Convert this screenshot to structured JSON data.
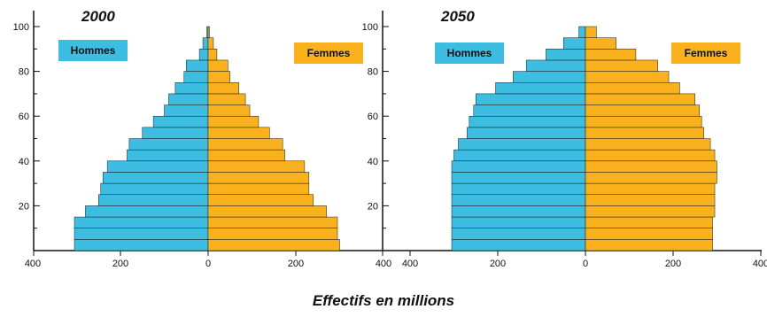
{
  "colors": {
    "hommes": "#3dbde1",
    "femmes": "#f9b21d",
    "bar_edge": "#1a1a1a",
    "axis": "#111111"
  },
  "chart_data": [
    {
      "type": "bar",
      "orientation": "horizontal-pyramid",
      "title": "2000",
      "xlabel": "Effectifs en millions",
      "xlim": [
        -400,
        400
      ],
      "ylim": [
        0,
        105
      ],
      "x_ticks": [
        400,
        200,
        0,
        200,
        400
      ],
      "y_ticks": [
        20,
        40,
        60,
        80,
        100
      ],
      "legend_placement": "top-inside",
      "categories": [
        "0-4",
        "5-9",
        "10-14",
        "15-19",
        "20-24",
        "25-29",
        "30-34",
        "35-39",
        "40-44",
        "45-49",
        "50-54",
        "55-59",
        "60-64",
        "65-69",
        "70-74",
        "75-79",
        "80-84",
        "85-89",
        "90-94",
        "95-99"
      ],
      "series": [
        {
          "name": "Hommes",
          "values": [
            305,
            305,
            305,
            280,
            250,
            245,
            240,
            230,
            185,
            180,
            150,
            125,
            100,
            90,
            75,
            55,
            50,
            20,
            12,
            3
          ]
        },
        {
          "name": "Femmes",
          "values": [
            300,
            295,
            295,
            270,
            240,
            230,
            230,
            220,
            175,
            170,
            140,
            115,
            95,
            85,
            70,
            50,
            45,
            20,
            12,
            3
          ]
        }
      ]
    },
    {
      "type": "bar",
      "orientation": "horizontal-pyramid",
      "title": "2050",
      "xlabel": "Effectifs en millions",
      "xlim": [
        -400,
        400
      ],
      "ylim": [
        0,
        105
      ],
      "x_ticks": [
        400,
        200,
        0,
        200,
        400
      ],
      "y_ticks": [
        20,
        40,
        60,
        80,
        100
      ],
      "legend_placement": "top-inside",
      "categories": [
        "0-4",
        "5-9",
        "10-14",
        "15-19",
        "20-24",
        "25-29",
        "30-34",
        "35-39",
        "40-44",
        "45-49",
        "50-54",
        "55-59",
        "60-64",
        "65-69",
        "70-74",
        "75-79",
        "80-84",
        "85-89",
        "90-94",
        "95-99"
      ],
      "series": [
        {
          "name": "Hommes",
          "values": [
            305,
            305,
            305,
            305,
            305,
            305,
            305,
            305,
            300,
            290,
            270,
            265,
            255,
            250,
            205,
            165,
            135,
            90,
            50,
            15
          ]
        },
        {
          "name": "Femmes",
          "values": [
            290,
            290,
            290,
            295,
            295,
            295,
            300,
            300,
            295,
            285,
            270,
            265,
            260,
            250,
            215,
            190,
            165,
            115,
            70,
            25
          ]
        }
      ]
    }
  ],
  "legend": {
    "hommes": "Hommes",
    "femmes": "Femmes"
  },
  "x_axis_title": "Effectifs en millions"
}
